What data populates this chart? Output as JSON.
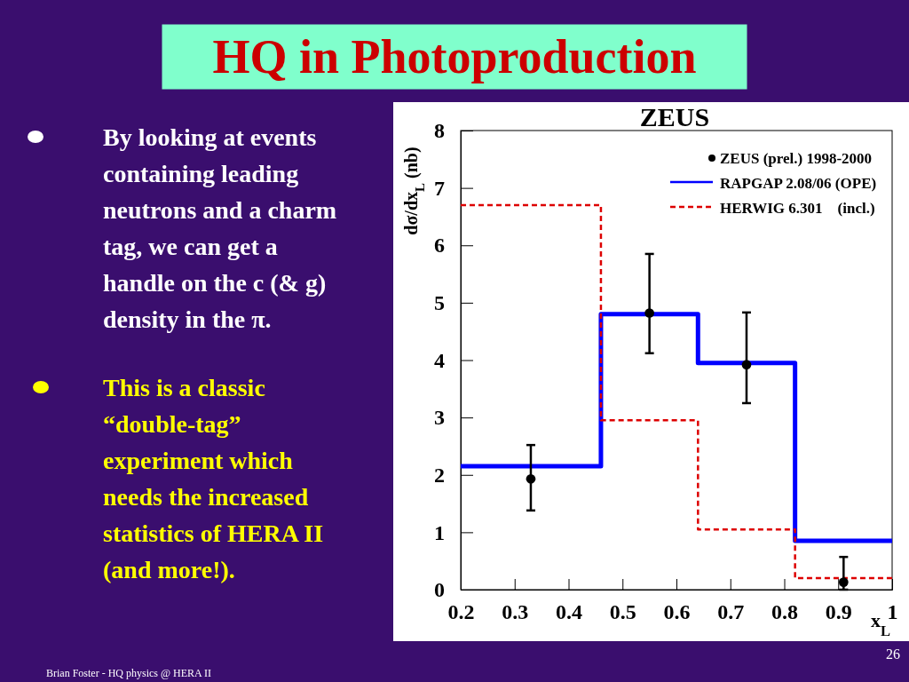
{
  "chart_data": [
    {
      "type": "other",
      "title": "HQ in Photoproduction",
      "annotations": [
        "By looking at events containing leading neutrons and a charm tag, we can get a handle on the c (& g) density in the π.",
        "This is a classic “double-tag” experiment which needs the increased statistics of HERA II (and more!).",
        "Brian Foster - HQ physics @ HERA II",
        "26"
      ]
    },
    {
      "type": "step",
      "title": "ZEUS",
      "xlabel": "x$_{L}$",
      "ylabel": "dσ/dx$_{L}$ (nb)",
      "xlim": [
        0.2,
        1
      ],
      "ylim": [
        0,
        8
      ],
      "xticks": [
        0.2,
        0.3,
        0.4,
        0.5,
        0.6,
        0.7,
        0.8,
        0.9,
        1
      ],
      "yticks": [
        0,
        1,
        2,
        3,
        4,
        5,
        6,
        7,
        8
      ],
      "legend": "top right",
      "series": [
        {
          "name": "ZEUS (prel.) 1998-2000",
          "type": "scatter",
          "color": "#000000",
          "marker": "circle",
          "x": [
            0.33,
            0.55,
            0.73,
            0.91
          ],
          "values": [
            1.93,
            4.82,
            3.92,
            0.13
          ],
          "errors": [
            [
              1.38,
              2.52
            ],
            [
              4.12,
              5.85
            ],
            [
              3.25,
              4.83
            ],
            [
              0,
              0.57
            ]
          ]
        },
        {
          "name": "RAPGAP 2.08/06 (OPE)",
          "type": "step",
          "color": "#0000ff",
          "line_style": "solid",
          "x": [
            0.2,
            0.46,
            0.64,
            0.82,
            1
          ],
          "values": [
            2.15,
            4.8,
            3.95,
            0.85,
            0.85
          ]
        },
        {
          "name": "HERWIG 6.301    (incl.)",
          "type": "step",
          "color": "#dd0000",
          "line_style": "dashed",
          "x": [
            0.2,
            0.46,
            0.64,
            0.82,
            1
          ],
          "values": [
            6.7,
            2.95,
            1.05,
            0.2,
            0.2
          ]
        }
      ]
    }
  ]
}
